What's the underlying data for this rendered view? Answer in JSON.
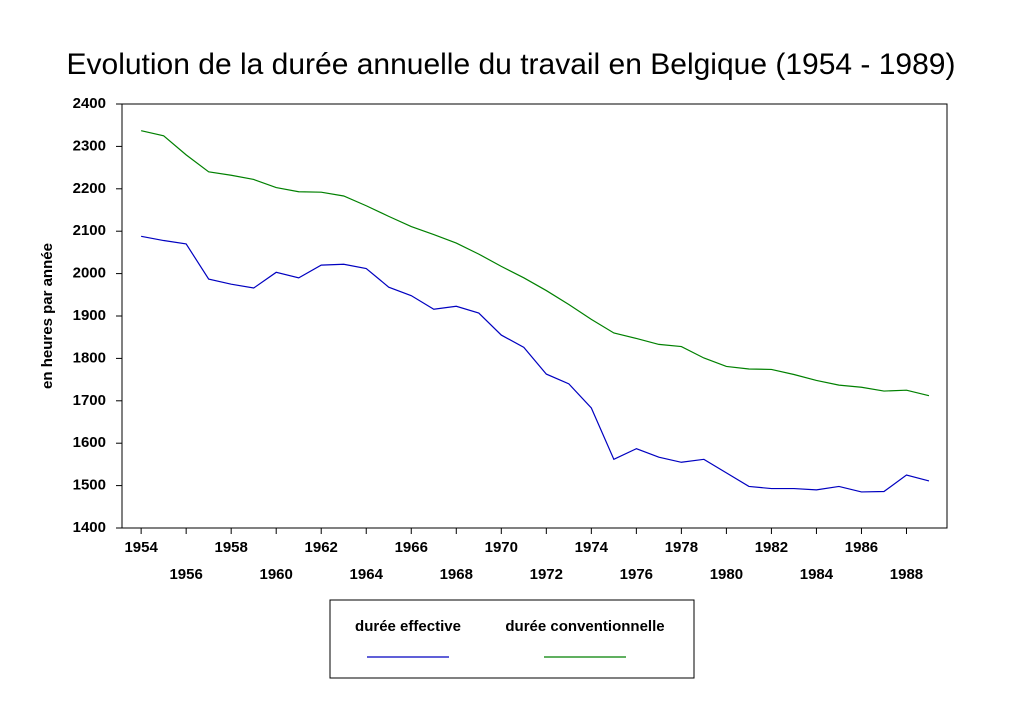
{
  "chart_data": {
    "type": "line",
    "title": "Evolution de la durée  annuelle du travail en Belgique (1954 - 1989)",
    "y_label": "en heures par année",
    "x": [
      1954,
      1955,
      1956,
      1957,
      1958,
      1959,
      1960,
      1961,
      1962,
      1963,
      1964,
      1965,
      1966,
      1967,
      1968,
      1969,
      1970,
      1971,
      1972,
      1973,
      1974,
      1975,
      1976,
      1977,
      1978,
      1979,
      1980,
      1981,
      1982,
      1983,
      1984,
      1985,
      1986,
      1987,
      1988,
      1989
    ],
    "series": [
      {
        "name": "durée effective",
        "color": "#0000c0",
        "values": [
          2088,
          2078,
          2070,
          1987,
          1975,
          1966,
          2003,
          1990,
          2020,
          2022,
          2012,
          1968,
          1948,
          1916,
          1923,
          1907,
          1855,
          1826,
          1763,
          1740,
          1683,
          1562,
          1587,
          1567,
          1555,
          1562,
          1530,
          1498,
          1493,
          1493,
          1490,
          1498,
          1485,
          1486,
          1525,
          1511
        ]
      },
      {
        "name": "durée conventionnelle",
        "color": "#008000",
        "values": [
          2337,
          2325,
          2280,
          2240,
          2232,
          2222,
          2203,
          2193,
          2192,
          2183,
          2160,
          2135,
          2111,
          2092,
          2072,
          2046,
          2017,
          1990,
          1960,
          1927,
          1892,
          1860,
          1847,
          1833,
          1828,
          1801,
          1781,
          1775,
          1774,
          1762,
          1748,
          1737,
          1732,
          1723,
          1725,
          1712
        ]
      }
    ],
    "xlim": [
      1953.15,
      1989.8
    ],
    "xticks": [
      1954,
      1956,
      1958,
      1960,
      1962,
      1964,
      1966,
      1968,
      1970,
      1972,
      1974,
      1976,
      1978,
      1980,
      1982,
      1984,
      1986,
      1988
    ],
    "ylim": [
      1400,
      2400
    ],
    "yticks": [
      1400,
      1500,
      1600,
      1700,
      1800,
      1900,
      2000,
      2100,
      2200,
      2300,
      2400
    ],
    "grid": false
  }
}
